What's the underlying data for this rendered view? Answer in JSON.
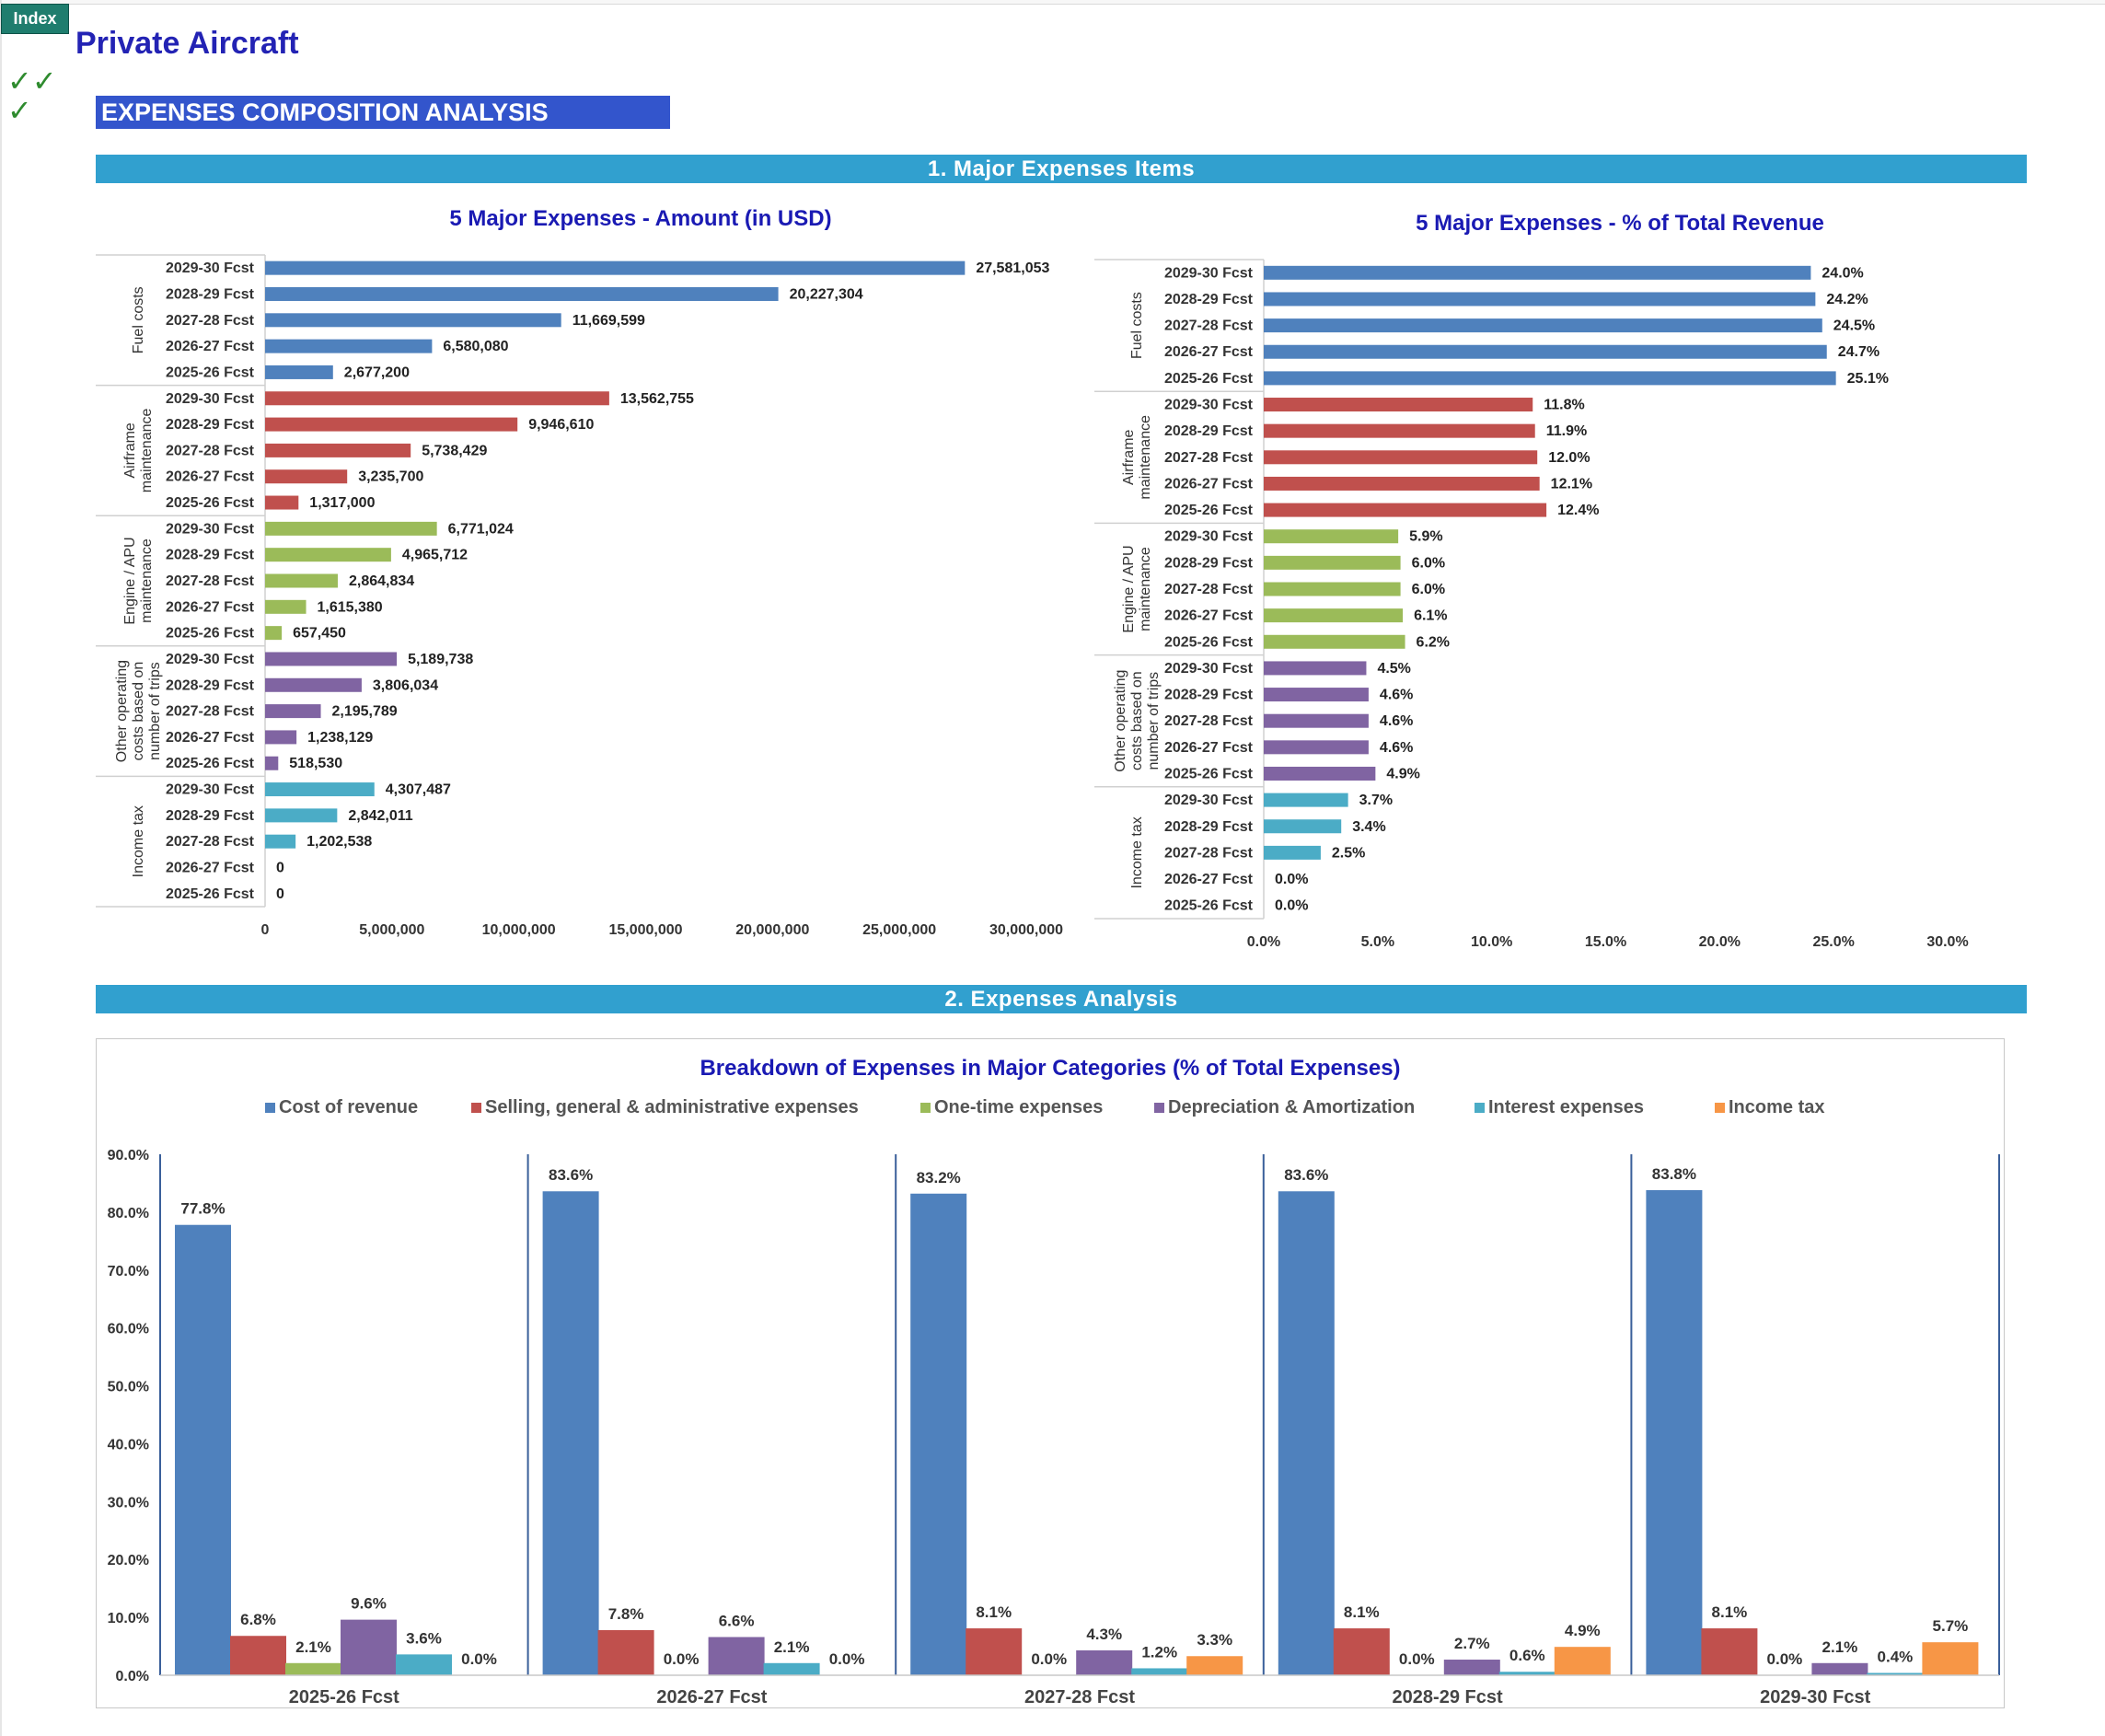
{
  "header": {
    "index_button": "Index",
    "app_title": "Private Aircraft",
    "checkmarks": "✓✓\n✓",
    "section_title": "EXPENSES COMPOSITION ANALYSIS"
  },
  "bands": {
    "major_items": "1. Major Expenses Items",
    "analysis": "2. Expenses Analysis"
  },
  "colors": {
    "blue": "#4f81bd",
    "red": "#c0504d",
    "green": "#9bbb59",
    "purple": "#8064a2",
    "teal": "#4bacc6",
    "orange": "#f79646",
    "title_blue": "#1a1ab3"
  },
  "chart_data": [
    {
      "type": "bar",
      "orientation": "horizontal",
      "title": "5 Major Expenses - Amount (in USD)",
      "xlim": [
        0,
        30000000
      ],
      "x_ticks": [
        "0",
        "5,000,000",
        "10,000,000",
        "15,000,000",
        "20,000,000",
        "25,000,000",
        "30,000,000"
      ],
      "groups": [
        {
          "name": "Fuel costs",
          "color": "#4f81bd",
          "rows": [
            {
              "label": "2029-30 Fcst",
              "value": 27581053,
              "text": "27,581,053"
            },
            {
              "label": "2028-29 Fcst",
              "value": 20227304,
              "text": "20,227,304"
            },
            {
              "label": "2027-28 Fcst",
              "value": 11669599,
              "text": "11,669,599"
            },
            {
              "label": "2026-27 Fcst",
              "value": 6580080,
              "text": "6,580,080"
            },
            {
              "label": "2025-26 Fcst",
              "value": 2677200,
              "text": "2,677,200"
            }
          ]
        },
        {
          "name": "Airframe maintenance",
          "color": "#c0504d",
          "rows": [
            {
              "label": "2029-30 Fcst",
              "value": 13562755,
              "text": "13,562,755"
            },
            {
              "label": "2028-29 Fcst",
              "value": 9946610,
              "text": "9,946,610"
            },
            {
              "label": "2027-28 Fcst",
              "value": 5738429,
              "text": "5,738,429"
            },
            {
              "label": "2026-27 Fcst",
              "value": 3235700,
              "text": "3,235,700"
            },
            {
              "label": "2025-26 Fcst",
              "value": 1317000,
              "text": "1,317,000"
            }
          ]
        },
        {
          "name": "Engine / APU maintenance",
          "color": "#9bbb59",
          "rows": [
            {
              "label": "2029-30 Fcst",
              "value": 6771024,
              "text": "6,771,024"
            },
            {
              "label": "2028-29 Fcst",
              "value": 4965712,
              "text": "4,965,712"
            },
            {
              "label": "2027-28 Fcst",
              "value": 2864834,
              "text": "2,864,834"
            },
            {
              "label": "2026-27 Fcst",
              "value": 1615380,
              "text": "1,615,380"
            },
            {
              "label": "2025-26 Fcst",
              "value": 657450,
              "text": "657,450"
            }
          ]
        },
        {
          "name": "Other operating costs based on number of trips",
          "color": "#8064a2",
          "rows": [
            {
              "label": "2029-30 Fcst",
              "value": 5189738,
              "text": "5,189,738"
            },
            {
              "label": "2028-29 Fcst",
              "value": 3806034,
              "text": "3,806,034"
            },
            {
              "label": "2027-28 Fcst",
              "value": 2195789,
              "text": "2,195,789"
            },
            {
              "label": "2026-27 Fcst",
              "value": 1238129,
              "text": "1,238,129"
            },
            {
              "label": "2025-26 Fcst",
              "value": 518530,
              "text": "518,530"
            }
          ]
        },
        {
          "name": "Income tax",
          "color": "#4bacc6",
          "rows": [
            {
              "label": "2029-30 Fcst",
              "value": 4307487,
              "text": "4,307,487"
            },
            {
              "label": "2028-29 Fcst",
              "value": 2842011,
              "text": "2,842,011"
            },
            {
              "label": "2027-28 Fcst",
              "value": 1202538,
              "text": "1,202,538"
            },
            {
              "label": "2026-27 Fcst",
              "value": 0,
              "text": "0"
            },
            {
              "label": "2025-26 Fcst",
              "value": 0,
              "text": "0"
            }
          ]
        }
      ]
    },
    {
      "type": "bar",
      "orientation": "horizontal",
      "title": "5 Major Expenses - % of Total Revenue",
      "xlim": [
        0,
        30
      ],
      "x_ticks": [
        "0.0%",
        "5.0%",
        "10.0%",
        "15.0%",
        "20.0%",
        "25.0%",
        "30.0%"
      ],
      "groups": [
        {
          "name": "Fuel costs",
          "color": "#4f81bd",
          "rows": [
            {
              "label": "2029-30 Fcst",
              "value": 24.0,
              "text": "24.0%"
            },
            {
              "label": "2028-29 Fcst",
              "value": 24.2,
              "text": "24.2%"
            },
            {
              "label": "2027-28 Fcst",
              "value": 24.5,
              "text": "24.5%"
            },
            {
              "label": "2026-27 Fcst",
              "value": 24.7,
              "text": "24.7%"
            },
            {
              "label": "2025-26 Fcst",
              "value": 25.1,
              "text": "25.1%"
            }
          ]
        },
        {
          "name": "Airframe maintenance",
          "color": "#c0504d",
          "rows": [
            {
              "label": "2029-30 Fcst",
              "value": 11.8,
              "text": "11.8%"
            },
            {
              "label": "2028-29 Fcst",
              "value": 11.9,
              "text": "11.9%"
            },
            {
              "label": "2027-28 Fcst",
              "value": 12.0,
              "text": "12.0%"
            },
            {
              "label": "2026-27 Fcst",
              "value": 12.1,
              "text": "12.1%"
            },
            {
              "label": "2025-26 Fcst",
              "value": 12.4,
              "text": "12.4%"
            }
          ]
        },
        {
          "name": "Engine / APU maintenance",
          "color": "#9bbb59",
          "rows": [
            {
              "label": "2029-30 Fcst",
              "value": 5.9,
              "text": "5.9%"
            },
            {
              "label": "2028-29 Fcst",
              "value": 6.0,
              "text": "6.0%"
            },
            {
              "label": "2027-28 Fcst",
              "value": 6.0,
              "text": "6.0%"
            },
            {
              "label": "2026-27 Fcst",
              "value": 6.1,
              "text": "6.1%"
            },
            {
              "label": "2025-26 Fcst",
              "value": 6.2,
              "text": "6.2%"
            }
          ]
        },
        {
          "name": "Other operating costs based on number of trips",
          "color": "#8064a2",
          "rows": [
            {
              "label": "2029-30 Fcst",
              "value": 4.5,
              "text": "4.5%"
            },
            {
              "label": "2028-29 Fcst",
              "value": 4.6,
              "text": "4.6%"
            },
            {
              "label": "2027-28 Fcst",
              "value": 4.6,
              "text": "4.6%"
            },
            {
              "label": "2026-27 Fcst",
              "value": 4.6,
              "text": "4.6%"
            },
            {
              "label": "2025-26 Fcst",
              "value": 4.9,
              "text": "4.9%"
            }
          ]
        },
        {
          "name": "Income tax",
          "color": "#4bacc6",
          "rows": [
            {
              "label": "2029-30 Fcst",
              "value": 3.7,
              "text": "3.7%"
            },
            {
              "label": "2028-29 Fcst",
              "value": 3.4,
              "text": "3.4%"
            },
            {
              "label": "2027-28 Fcst",
              "value": 2.5,
              "text": "2.5%"
            },
            {
              "label": "2026-27 Fcst",
              "value": 0.0,
              "text": "0.0%"
            },
            {
              "label": "2025-26 Fcst",
              "value": 0.0,
              "text": "0.0%"
            }
          ]
        }
      ]
    },
    {
      "type": "bar",
      "orientation": "vertical",
      "title": "Breakdown of Expenses in Major Categories (% of Total Expenses)",
      "ylim": [
        0,
        90
      ],
      "y_ticks": [
        "0.0%",
        "10.0%",
        "20.0%",
        "30.0%",
        "40.0%",
        "50.0%",
        "60.0%",
        "70.0%",
        "80.0%",
        "90.0%"
      ],
      "legend_position": "top",
      "categories": [
        "2025-26 Fcst",
        "2026-27 Fcst",
        "2027-28 Fcst",
        "2028-29 Fcst",
        "2029-30 Fcst"
      ],
      "series": [
        {
          "name": "Cost of revenue",
          "color": "#4f81bd",
          "values": [
            77.8,
            83.6,
            83.2,
            83.6,
            83.8
          ],
          "texts": [
            "77.8%",
            "83.6%",
            "83.2%",
            "83.6%",
            "83.8%"
          ]
        },
        {
          "name": "Selling, general & administrative expenses",
          "color": "#c0504d",
          "values": [
            6.8,
            7.8,
            8.1,
            8.1,
            8.1
          ],
          "texts": [
            "6.8%",
            "7.8%",
            "8.1%",
            "8.1%",
            "8.1%"
          ]
        },
        {
          "name": "One-time expenses",
          "color": "#9bbb59",
          "values": [
            2.1,
            0.0,
            0.0,
            0.0,
            0.0
          ],
          "texts": [
            "2.1%",
            "0.0%",
            "0.0%",
            "0.0%",
            "0.0%"
          ]
        },
        {
          "name": "Depreciation & Amortization",
          "color": "#8064a2",
          "values": [
            9.6,
            6.6,
            4.3,
            2.7,
            2.1
          ],
          "texts": [
            "9.6%",
            "6.6%",
            "4.3%",
            "2.7%",
            "2.1%"
          ]
        },
        {
          "name": "Interest expenses",
          "color": "#4bacc6",
          "values": [
            3.6,
            2.1,
            1.2,
            0.6,
            0.4
          ],
          "texts": [
            "3.6%",
            "2.1%",
            "1.2%",
            "0.6%",
            "0.4%"
          ]
        },
        {
          "name": "Income tax",
          "color": "#f79646",
          "values": [
            0.0,
            0.0,
            3.3,
            4.9,
            5.7
          ],
          "texts": [
            "0.0%",
            "0.0%",
            "3.3%",
            "4.9%",
            "5.7%"
          ]
        }
      ]
    }
  ]
}
